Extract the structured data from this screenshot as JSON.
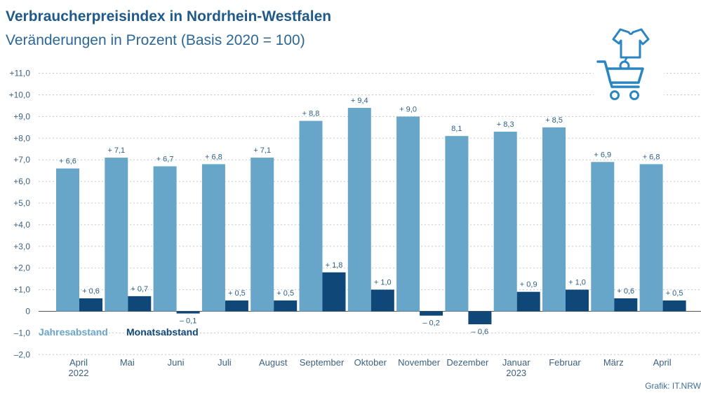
{
  "title": "Verbraucherpreisindex in Nordrhein-Westfalen",
  "subtitle": "Veränderungen in Prozent (Basis 2020 = 100)",
  "source": "Grafik: IT.NRW",
  "icon": "shopping-basket-with-tshirt-icon",
  "colors": {
    "jahr": "#67a6c9",
    "monat": "#0e4778",
    "grid": "#c8c8c8",
    "axis": "#555555",
    "title": "#1f5a8a"
  },
  "chart_data": {
    "type": "bar",
    "categories": [
      "April 2022",
      "Mai",
      "Juni",
      "Juli",
      "August",
      "September",
      "Oktober",
      "November",
      "Dezember",
      "Januar 2023",
      "Februar",
      "März",
      "April"
    ],
    "category_labels": [
      [
        "April",
        "2022"
      ],
      [
        "Mai"
      ],
      [
        "Juni"
      ],
      [
        "Juli"
      ],
      [
        "August"
      ],
      [
        "September"
      ],
      [
        "Oktober"
      ],
      [
        "November"
      ],
      [
        "Dezember"
      ],
      [
        "Januar",
        "2023"
      ],
      [
        "Februar"
      ],
      [
        "März"
      ],
      [
        "April"
      ]
    ],
    "series": [
      {
        "name": "Jahresabstand",
        "values": [
          6.6,
          7.1,
          6.7,
          6.8,
          7.1,
          8.8,
          9.4,
          9.0,
          8.1,
          8.3,
          8.5,
          6.9,
          6.8
        ],
        "labels": [
          "+ 6,6",
          "+ 7,1",
          "+ 6,7",
          "+ 6,8",
          "+ 7,1",
          "+ 8,8",
          "+ 9,4",
          "+ 9,0",
          "8,1",
          "+ 8,3",
          "+ 8,5",
          "+ 6,9",
          "+ 6,8"
        ]
      },
      {
        "name": "Monatsabstand",
        "values": [
          0.6,
          0.7,
          -0.1,
          0.5,
          0.5,
          1.8,
          1.0,
          -0.2,
          -0.6,
          0.9,
          1.0,
          0.6,
          0.5
        ],
        "labels": [
          "+ 0,6",
          "+ 0,7",
          "– 0,1",
          "+ 0,5",
          "+ 0,5",
          "+ 1,8",
          "+ 1,0",
          "– 0,2",
          "– 0,6",
          "+ 0,9",
          "+ 1,0",
          "+ 0,6",
          "+ 0,5"
        ]
      }
    ],
    "ylim": [
      -2.0,
      11.0
    ],
    "yticks": [
      11,
      10,
      9,
      8,
      7,
      6,
      5,
      4,
      3,
      2,
      1,
      0,
      -1,
      -2
    ],
    "ytick_labels": [
      "+11,0",
      "+10,0",
      "+9,0",
      "+8,0",
      "+7,0",
      "+6,0",
      "+5,0",
      "+4,0",
      "+3,0",
      "+2,0",
      "+1,0",
      "0",
      "–1,0",
      "–2,0"
    ],
    "xlabel": "",
    "ylabel": "",
    "grid": true,
    "legend": "bottom-left"
  }
}
